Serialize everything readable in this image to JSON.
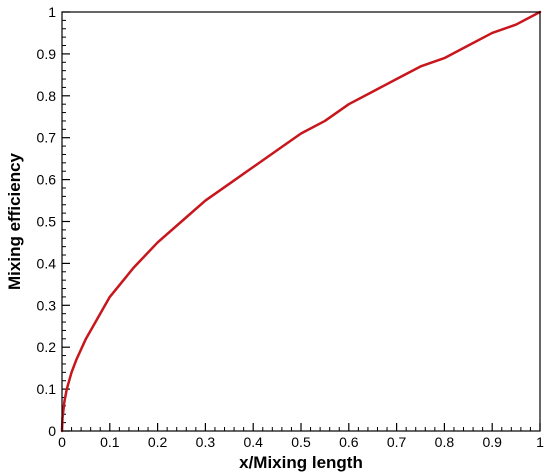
{
  "chart_data": {
    "type": "line",
    "title": "",
    "xlabel": "x/Mixing length",
    "ylabel": "Mixing efficiency",
    "xlim": [
      0,
      1
    ],
    "ylim": [
      0,
      1
    ],
    "grid": false,
    "legend": "none",
    "x_ticks": [
      "0",
      "0.1",
      "0.2",
      "0.3",
      "0.4",
      "0.5",
      "0.6",
      "0.7",
      "0.8",
      "0.9",
      "1"
    ],
    "y_ticks": [
      "0",
      "0.1",
      "0.2",
      "0.3",
      "0.4",
      "0.5",
      "0.6",
      "0.7",
      "0.8",
      "0.9",
      "1"
    ],
    "series": [
      {
        "color": "#c8161d",
        "x": [
          0,
          0.001,
          0.005,
          0.01,
          0.02,
          0.03,
          0.05,
          0.075,
          0.1,
          0.15,
          0.2,
          0.25,
          0.3,
          0.35,
          0.4,
          0.45,
          0.5,
          0.55,
          0.6,
          0.65,
          0.7,
          0.75,
          0.8,
          0.85,
          0.9,
          0.95,
          1.0
        ],
        "y": [
          0,
          0.03,
          0.07,
          0.1,
          0.14,
          0.17,
          0.22,
          0.27,
          0.32,
          0.39,
          0.45,
          0.5,
          0.55,
          0.59,
          0.63,
          0.67,
          0.71,
          0.74,
          0.78,
          0.81,
          0.84,
          0.87,
          0.89,
          0.92,
          0.95,
          0.97,
          1.0
        ]
      }
    ]
  }
}
